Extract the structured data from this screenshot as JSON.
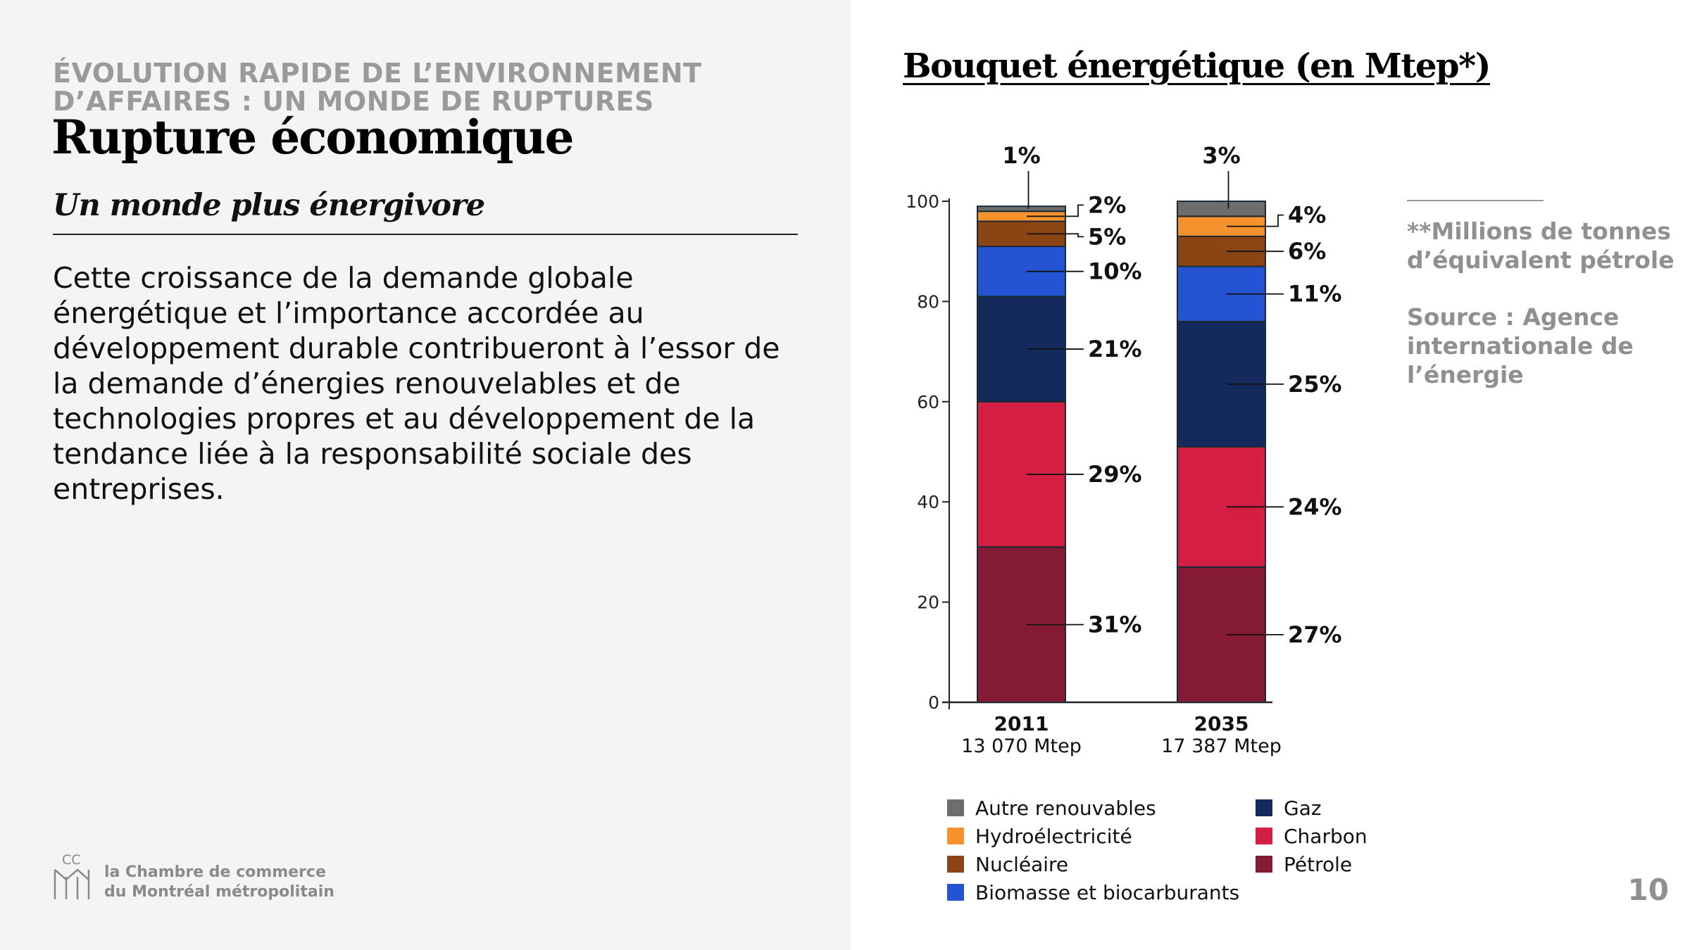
{
  "header": {
    "kicker": "ÉVOLUTION RAPIDE DE L’ENVIRONNEMENT D’AFFAIRES : UN MONDE DE RUPTURES",
    "title": "Rupture économique",
    "subtitle": "Un monde plus énergivore"
  },
  "body": {
    "text": "Cette croissance de la demande globale énergétique et l’importance accordée au développement durable contribueront à l’essor de la demande d’énergies renouvelables et de technologies propres et au développement de la tendance liée à la responsabilité sociale des entreprises."
  },
  "footer": {
    "logo_letters": "CC",
    "logo_line1": "la Chambre de commerce",
    "logo_line2": "du Montréal métropolitain",
    "page_number": "10"
  },
  "notes": {
    "units": "**Millions de tonnes d’équivalent pétrole",
    "source": "Source : Agence internationale de l’énergie"
  },
  "chart_data": {
    "type": "stacked-bar",
    "title": "Bouquet énergétique (en Mtep*)",
    "ylim": [
      0,
      100
    ],
    "yticks": [
      0,
      20,
      40,
      60,
      80,
      100
    ],
    "categories": [
      {
        "year": "2011",
        "total": "13 070 Mtep"
      },
      {
        "year": "2035",
        "total": "17 387 Mtep"
      }
    ],
    "series": [
      {
        "name": "Pétrole",
        "color": "#841a33",
        "values": [
          31,
          27
        ],
        "labels": [
          "31%",
          "27%"
        ]
      },
      {
        "name": "Charbon",
        "color": "#d41e44",
        "values": [
          29,
          24
        ],
        "labels": [
          "29%",
          "24%"
        ]
      },
      {
        "name": "Gaz",
        "color": "#142a5c",
        "values": [
          21,
          25
        ],
        "labels": [
          "21%",
          "25%"
        ]
      },
      {
        "name": "Biomasse et biocarburants",
        "color": "#2453d4",
        "values": [
          10,
          11
        ],
        "labels": [
          "10%",
          "11%"
        ]
      },
      {
        "name": "Nucléaire",
        "color": "#8b4514",
        "values": [
          5,
          6
        ],
        "labels": [
          "5%",
          "6%"
        ]
      },
      {
        "name": "Hydroélectricité",
        "color": "#f5922e",
        "values": [
          2,
          4
        ],
        "labels": [
          "2%",
          "4%"
        ]
      },
      {
        "name": "Autre renouvables",
        "color": "#6d6d6d",
        "values": [
          1,
          3
        ],
        "labels": [
          "1%",
          "3%"
        ]
      }
    ],
    "legend": [
      {
        "name": "Autre renouvables",
        "color": "#6d6d6d"
      },
      {
        "name": "Hydroélectricité",
        "color": "#f5922e"
      },
      {
        "name": "Nucléaire",
        "color": "#8b4514"
      },
      {
        "name": "Biomasse et biocarburants",
        "color": "#2453d4"
      },
      {
        "name": "Gaz",
        "color": "#142a5c"
      },
      {
        "name": "Charbon",
        "color": "#d41e44"
      },
      {
        "name": "Pétrole",
        "color": "#841a33"
      }
    ]
  }
}
